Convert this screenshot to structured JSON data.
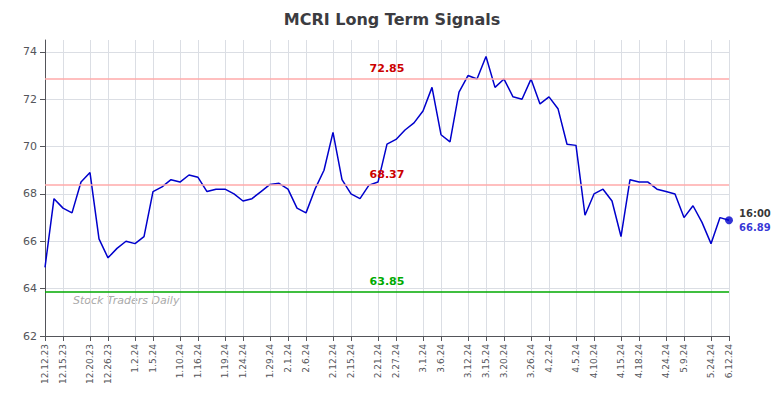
{
  "chart_data": {
    "type": "line",
    "title": "MCRI Long Term Signals",
    "color": "#0000cc",
    "categories": [
      "12.12.23",
      null,
      "12.15.23",
      null,
      null,
      "12.20.23",
      null,
      "12.26.23",
      null,
      null,
      "1.2.24",
      null,
      "1.5.24",
      null,
      null,
      "1.10.24",
      null,
      "1.16.24",
      null,
      null,
      "1.19.24",
      null,
      "1.24.24",
      null,
      null,
      "1.29.24",
      null,
      "2.1.24",
      null,
      "2.6.24",
      null,
      null,
      "2.12.24",
      null,
      "2.15.24",
      null,
      null,
      "2.21.24",
      null,
      "2.27.24",
      null,
      null,
      "3.1.24",
      null,
      "3.6.24",
      null,
      null,
      "3.12.24",
      null,
      "3.15.24",
      null,
      "3.20.24",
      null,
      null,
      "3.26.24",
      null,
      "4.2.24",
      null,
      null,
      "4.5.24",
      null,
      "4.10.24",
      null,
      null,
      "4.15.24",
      null,
      "4.18.24",
      null,
      null,
      "4.24.24",
      null,
      "5.9.24",
      null,
      null,
      "5.24.24",
      null,
      "6.12.24"
    ],
    "values": [
      64.9,
      67.8,
      67.4,
      67.2,
      68.5,
      68.9,
      66.1,
      65.3,
      65.7,
      66.0,
      65.9,
      66.2,
      68.1,
      68.3,
      68.6,
      68.5,
      68.8,
      68.7,
      68.1,
      68.2,
      68.2,
      68.0,
      67.7,
      67.8,
      68.1,
      68.4,
      68.45,
      68.2,
      67.4,
      67.2,
      68.2,
      69.0,
      70.6,
      68.6,
      68.0,
      67.8,
      68.37,
      68.5,
      70.1,
      70.3,
      70.7,
      71.0,
      71.5,
      72.5,
      70.5,
      70.2,
      72.3,
      73.0,
      72.85,
      73.8,
      72.5,
      72.85,
      72.1,
      72.0,
      72.85,
      71.8,
      72.1,
      71.6,
      70.1,
      70.05,
      67.1,
      68.0,
      68.2,
      67.7,
      66.2,
      68.6,
      68.5,
      68.5,
      68.2,
      68.1,
      68.0,
      67.0,
      67.5,
      66.8,
      65.9,
      67.0,
      66.89
    ],
    "lines": [
      {
        "y": 72.85,
        "color": "#ffaaaa",
        "label": "72.85",
        "label_color": "#cc0000"
      },
      {
        "y": 68.37,
        "color": "#ffaaaa",
        "label": "68.37",
        "label_color": "#cc0000"
      },
      {
        "y": 63.85,
        "color": "#00aa00",
        "label": "63.85",
        "label_color": "#00aa00"
      }
    ],
    "last_label_time": "16:00",
    "last_value": 66.89,
    "watermark": "Stock Traders Daily",
    "ylim": [
      62,
      74.5
    ],
    "yticks": [
      62,
      64,
      66,
      68,
      70,
      72,
      74
    ],
    "grid": true
  }
}
